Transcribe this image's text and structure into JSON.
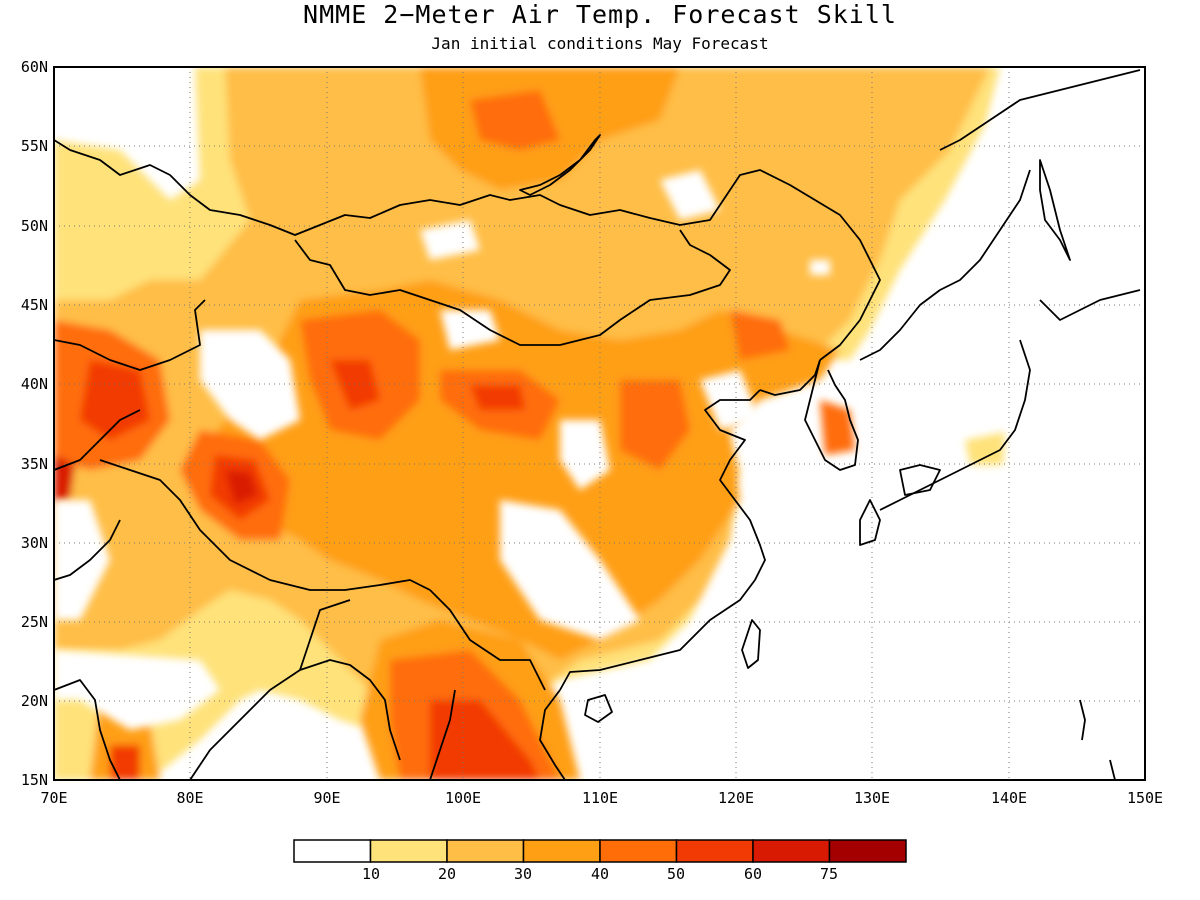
{
  "header": {
    "title": "NMME 2−Meter Air Temp. Forecast Skill",
    "subtitle": "Jan initial conditions  May Forecast"
  },
  "map": {
    "lon_range": [
      70,
      150
    ],
    "lat_range": [
      15,
      60
    ],
    "lat_ticks": [
      "60N",
      "55N",
      "50N",
      "45N",
      "40N",
      "35N",
      "30N",
      "25N",
      "20N",
      "15N"
    ],
    "lon_ticks": [
      "70E",
      "80E",
      "90E",
      "100E",
      "110E",
      "120E",
      "130E",
      "140E",
      "150E"
    ],
    "grid": true,
    "coastline_color": "#000000"
  },
  "colorbar": {
    "thresholds": [
      "10",
      "20",
      "30",
      "40",
      "50",
      "60",
      "75"
    ],
    "colors": [
      "#ffffff",
      "#ffe27a",
      "#ffbe46",
      "#ff9f14",
      "#ff6d08",
      "#f23a04",
      "#d91a02",
      "#a50000"
    ]
  }
}
